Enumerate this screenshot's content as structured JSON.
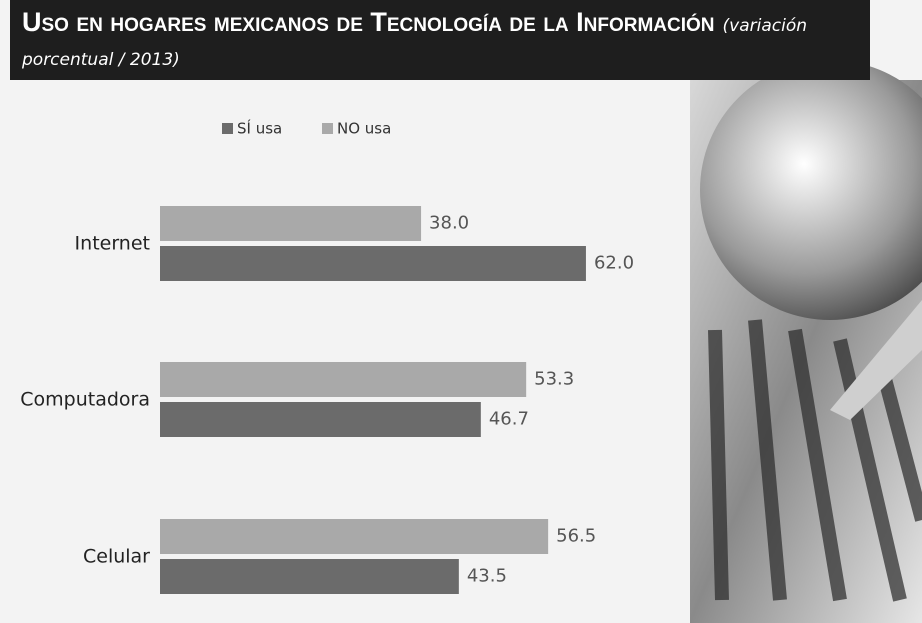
{
  "chart_data": {
    "type": "hbar",
    "title": "Uso en hogares mexicanos de Tecnología de la Información",
    "subtitle": "(variación porcentual / 2013)",
    "categories": [
      "Internet",
      "Computadora",
      "Celular"
    ],
    "series": [
      {
        "name": "SÍ usa",
        "color": "#6b6b6b",
        "values": [
          62.0,
          46.7,
          43.5
        ],
        "value_labels": [
          "62.0",
          "46.7",
          "43.5"
        ]
      },
      {
        "name": "NO usa",
        "color": "#a9a9a9",
        "values": [
          38.0,
          53.3,
          56.5
        ],
        "value_labels": [
          "38.0",
          "53.3",
          "56.5"
        ]
      }
    ]
  }
}
